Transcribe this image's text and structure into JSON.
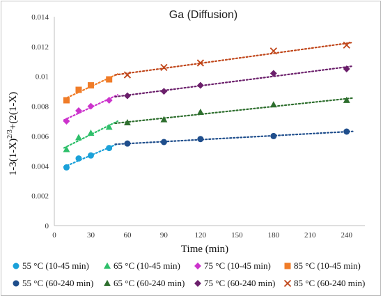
{
  "chart_data": {
    "type": "scatter",
    "title": "Ga (Diffusion)",
    "xlabel": "Time (min)",
    "ylabel": {
      "base": "1-3(1-X)",
      "sup": "2/3",
      "tail": "+(2(1-X)"
    },
    "xlim": [
      0,
      255
    ],
    "ylim": [
      0,
      0.014
    ],
    "xticks": [
      "0",
      "30",
      "60",
      "90",
      "120",
      "150",
      "180",
      "210",
      "240"
    ],
    "yticks": [
      "0",
      "0.002",
      "0.004",
      "0.006",
      "0.008",
      "0.01",
      "0.012",
      "0.014"
    ],
    "grid": false,
    "legend_position": "bottom",
    "series": [
      {
        "name": "55 °C (10-45 min)",
        "marker": "circle",
        "color": "#1ba1d9",
        "x": [
          10,
          20,
          30,
          45
        ],
        "y": [
          0.0039,
          0.0045,
          0.0047,
          0.0052
        ]
      },
      {
        "name": "65 °C (10-45 min)",
        "marker": "triangle",
        "color": "#2ebf6a",
        "x": [
          10,
          20,
          30,
          45
        ],
        "y": [
          0.0051,
          0.0059,
          0.0062,
          0.0066
        ]
      },
      {
        "name": "75 °C (10-45 min)",
        "marker": "diamond",
        "color": "#cc33cc",
        "x": [
          10,
          20,
          30,
          45
        ],
        "y": [
          0.007,
          0.0077,
          0.008,
          0.0084
        ]
      },
      {
        "name": "85 °C (10-45 min)",
        "marker": "square",
        "color": "#f07c28",
        "x": [
          10,
          20,
          30,
          45
        ],
        "y": [
          0.0084,
          0.0091,
          0.0094,
          0.0098
        ]
      },
      {
        "name": "55 °C (60-240 min)",
        "marker": "circle",
        "color": "#1f4e8c",
        "x": [
          60,
          90,
          120,
          180,
          240
        ],
        "y": [
          0.0055,
          0.0056,
          0.0058,
          0.006,
          0.0063
        ]
      },
      {
        "name": "65 °C (60-240 min)",
        "marker": "triangle",
        "color": "#2d6e2d",
        "x": [
          60,
          90,
          120,
          180,
          240
        ],
        "y": [
          0.0069,
          0.0071,
          0.0076,
          0.0081,
          0.0084
        ]
      },
      {
        "name": "75 °C (60-240 min)",
        "marker": "diamond",
        "color": "#6b1f6b",
        "x": [
          60,
          90,
          120,
          180,
          240
        ],
        "y": [
          0.0087,
          0.009,
          0.0094,
          0.0102,
          0.0105
        ]
      },
      {
        "name": "85 °C (60-240 min)",
        "marker": "x",
        "color": "#c0461a",
        "x": [
          60,
          90,
          120,
          180,
          240
        ],
        "y": [
          0.0101,
          0.0106,
          0.0109,
          0.0117,
          0.0121
        ]
      }
    ],
    "trendline_style": "dotted"
  }
}
